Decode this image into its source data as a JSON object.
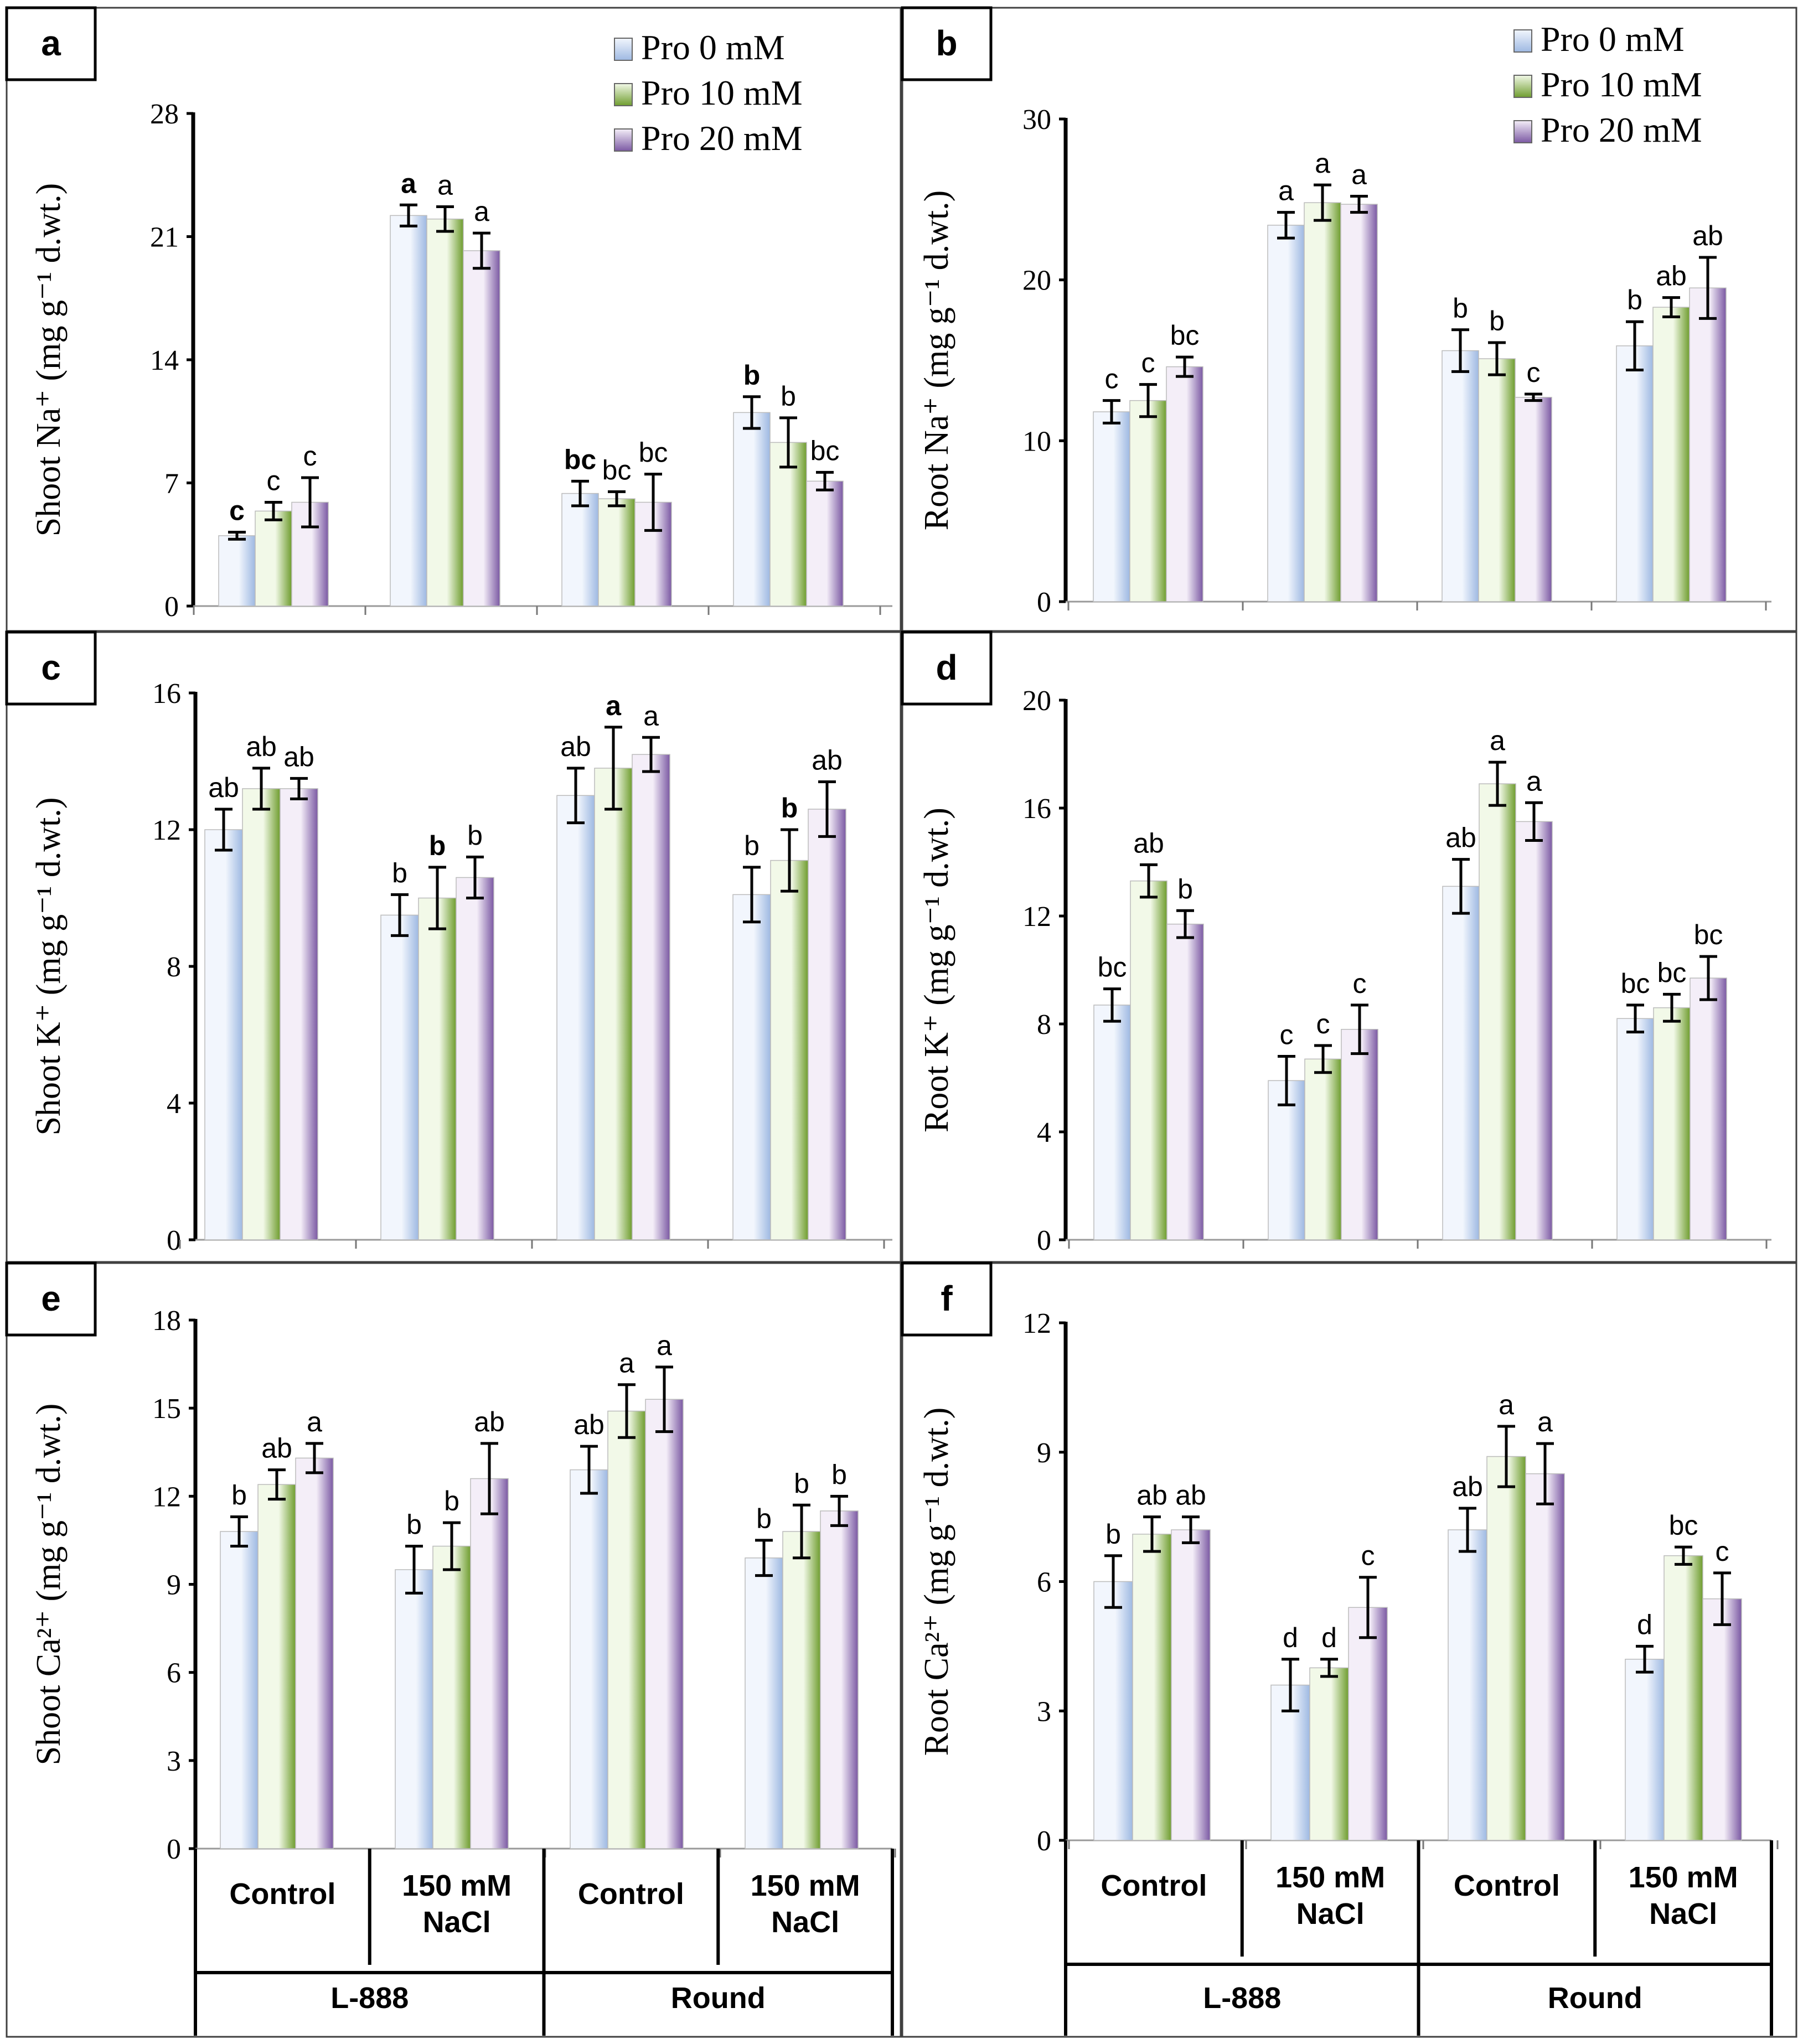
{
  "legend": [
    "Pro 0 mM",
    "Pro 10 mM",
    "Pro 20 mM"
  ],
  "colors": {
    "series": [
      {
        "light": "#f2f6fd",
        "dark": "#9eb9e2"
      },
      {
        "light": "#f2f9e8",
        "dark": "#6f9d2f"
      },
      {
        "light": "#f4eef8",
        "dark": "#7b59a3"
      }
    ],
    "axis": "#000000"
  },
  "x_axis": {
    "treatments": [
      "Control",
      "150 mM NaCl",
      "Control",
      "150 mM NaCl"
    ],
    "genotypes": [
      "L-888",
      "Round"
    ]
  },
  "chart_data": [
    {
      "panel": "a",
      "type": "bar",
      "ylabel": "Shoot Na⁺ (mg g⁻¹ d.wt.)",
      "yticks": [
        0,
        7,
        14,
        21,
        28
      ],
      "ylim": [
        0,
        28
      ],
      "series": [
        {
          "name": "Pro 0 mM",
          "values": [
            4.0,
            22.2,
            6.4,
            11.0
          ],
          "errors": [
            0.2,
            0.6,
            0.7,
            0.9
          ],
          "letters": [
            "c",
            "a",
            "bc",
            "b"
          ],
          "bold": [
            true,
            true,
            true,
            true
          ]
        },
        {
          "name": "Pro 10 mM",
          "values": [
            5.4,
            22.0,
            6.1,
            9.3
          ],
          "errors": [
            0.5,
            0.7,
            0.4,
            1.4
          ],
          "letters": [
            "c",
            "a",
            "bc",
            "b"
          ],
          "bold": [
            false,
            false,
            false,
            false
          ]
        },
        {
          "name": "Pro 20 mM",
          "values": [
            5.9,
            20.2,
            5.9,
            7.1
          ],
          "errors": [
            1.4,
            1.0,
            1.6,
            0.5
          ],
          "letters": [
            "c",
            "a",
            "bc",
            "bc"
          ],
          "bold": [
            false,
            false,
            false,
            false
          ]
        }
      ]
    },
    {
      "panel": "b",
      "type": "bar",
      "ylabel": "Root Na⁺ (mg g⁻¹ d.wt.)",
      "yticks": [
        0,
        10,
        20,
        30
      ],
      "ylim": [
        0,
        30
      ],
      "series": [
        {
          "name": "Pro 0 mM",
          "values": [
            11.8,
            23.4,
            15.6,
            15.9
          ],
          "errors": [
            0.7,
            0.8,
            1.3,
            1.5
          ],
          "letters": [
            "c",
            "a",
            "b",
            "b"
          ],
          "bold": [
            false,
            false,
            false,
            false
          ]
        },
        {
          "name": "Pro 10 mM",
          "values": [
            12.5,
            24.8,
            15.1,
            18.3
          ],
          "errors": [
            1.0,
            1.1,
            1.0,
            0.6
          ],
          "letters": [
            "c",
            "a",
            "b",
            "ab"
          ],
          "bold": [
            false,
            false,
            false,
            false
          ]
        },
        {
          "name": "Pro 20 mM",
          "values": [
            14.6,
            24.7,
            12.7,
            19.5
          ],
          "errors": [
            0.6,
            0.5,
            0.2,
            1.9
          ],
          "letters": [
            "bc",
            "a",
            "c",
            "ab"
          ],
          "bold": [
            false,
            false,
            false,
            false
          ]
        }
      ]
    },
    {
      "panel": "c",
      "type": "bar",
      "ylabel": "Shoot K⁺ (mg g⁻¹ d.wt.)",
      "yticks": [
        0,
        4,
        8,
        12,
        16
      ],
      "ylim": [
        0,
        16
      ],
      "series": [
        {
          "name": "Pro 0 mM",
          "values": [
            12.0,
            9.5,
            13.0,
            10.1
          ],
          "errors": [
            0.6,
            0.6,
            0.8,
            0.8
          ],
          "letters": [
            "ab",
            "b",
            "ab",
            "b"
          ],
          "bold": [
            false,
            false,
            false,
            false
          ]
        },
        {
          "name": "Pro 10 mM",
          "values": [
            13.2,
            10.0,
            13.8,
            11.1
          ],
          "errors": [
            0.6,
            0.9,
            1.2,
            0.9
          ],
          "letters": [
            "ab",
            "b",
            "a",
            "b"
          ],
          "bold": [
            false,
            true,
            true,
            true
          ]
        },
        {
          "name": "Pro 20 mM",
          "values": [
            13.2,
            10.6,
            14.2,
            12.6
          ],
          "errors": [
            0.3,
            0.6,
            0.5,
            0.8
          ],
          "letters": [
            "ab",
            "b",
            "a",
            "ab"
          ],
          "bold": [
            false,
            false,
            false,
            false
          ]
        }
      ]
    },
    {
      "panel": "d",
      "type": "bar",
      "ylabel": "Root K⁺ (mg g⁻¹ d.wt.)",
      "yticks": [
        0,
        4,
        8,
        12,
        16,
        20
      ],
      "ylim": [
        0,
        20
      ],
      "series": [
        {
          "name": "Pro 0 mM",
          "values": [
            8.7,
            5.9,
            13.1,
            8.2
          ],
          "errors": [
            0.6,
            0.9,
            1.0,
            0.5
          ],
          "letters": [
            "bc",
            "c",
            "ab",
            "bc"
          ],
          "bold": [
            false,
            false,
            false,
            false
          ]
        },
        {
          "name": "Pro 10 mM",
          "values": [
            13.3,
            6.7,
            16.9,
            8.6
          ],
          "errors": [
            0.6,
            0.5,
            0.8,
            0.5
          ],
          "letters": [
            "ab",
            "c",
            "a",
            "bc"
          ],
          "bold": [
            false,
            false,
            false,
            false
          ]
        },
        {
          "name": "Pro 20 mM",
          "values": [
            11.7,
            7.8,
            15.5,
            9.7
          ],
          "errors": [
            0.5,
            0.9,
            0.7,
            0.8
          ],
          "letters": [
            "b",
            "c",
            "a",
            "bc"
          ],
          "bold": [
            false,
            false,
            false,
            false
          ]
        }
      ]
    },
    {
      "panel": "e",
      "type": "bar",
      "ylabel": "Shoot Ca²⁺ (mg g⁻¹ d.wt.)",
      "yticks": [
        0,
        3,
        6,
        9,
        12,
        15,
        18
      ],
      "ylim": [
        0,
        18
      ],
      "series": [
        {
          "name": "Pro 0 mM",
          "values": [
            10.8,
            9.5,
            12.9,
            9.9
          ],
          "errors": [
            0.5,
            0.8,
            0.8,
            0.6
          ],
          "letters": [
            "b",
            "b",
            "ab",
            "b"
          ],
          "bold": [
            false,
            false,
            false,
            false
          ]
        },
        {
          "name": "Pro 10 mM",
          "values": [
            12.4,
            10.3,
            14.9,
            10.8
          ],
          "errors": [
            0.5,
            0.8,
            0.9,
            0.9
          ],
          "letters": [
            "ab",
            "b",
            "a",
            "b"
          ],
          "bold": [
            false,
            false,
            false,
            false
          ]
        },
        {
          "name": "Pro 20 mM",
          "values": [
            13.3,
            12.6,
            15.3,
            11.5
          ],
          "errors": [
            0.5,
            1.2,
            1.1,
            0.5
          ],
          "letters": [
            "a",
            "ab",
            "a",
            "b"
          ],
          "bold": [
            false,
            false,
            false,
            false
          ]
        }
      ]
    },
    {
      "panel": "f",
      "type": "bar",
      "ylabel": "Root Ca²⁺ (mg g⁻¹ d.wt.)",
      "yticks": [
        0,
        3,
        6,
        9,
        12
      ],
      "ylim": [
        0,
        12
      ],
      "series": [
        {
          "name": "Pro 0 mM",
          "values": [
            6.0,
            3.6,
            7.2,
            4.2
          ],
          "errors": [
            0.6,
            0.6,
            0.5,
            0.3
          ],
          "letters": [
            "b",
            "d",
            "ab",
            "d"
          ],
          "bold": [
            false,
            false,
            false,
            false
          ]
        },
        {
          "name": "Pro 10 mM",
          "values": [
            7.1,
            4.0,
            8.9,
            6.6
          ],
          "errors": [
            0.4,
            0.2,
            0.7,
            0.2
          ],
          "letters": [
            "ab",
            "d",
            "a",
            "bc"
          ],
          "bold": [
            false,
            false,
            false,
            false
          ]
        },
        {
          "name": "Pro 20 mM",
          "values": [
            7.2,
            5.4,
            8.5,
            5.6
          ],
          "errors": [
            0.3,
            0.7,
            0.7,
            0.6
          ],
          "letters": [
            "ab",
            "c",
            "a",
            "c"
          ],
          "bold": [
            false,
            false,
            false,
            false
          ]
        }
      ]
    }
  ]
}
